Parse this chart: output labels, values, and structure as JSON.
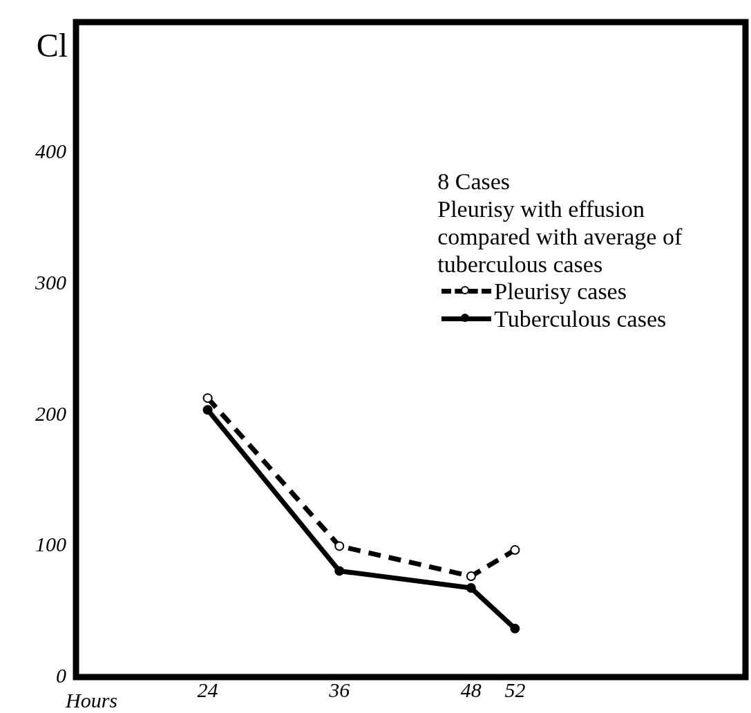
{
  "chart_data": {
    "type": "line",
    "title": "8 Cases",
    "subtitle": "Pleurisy with effusion compared with average of tuberculous cases",
    "xlabel": "Hours",
    "ylabel": "Cl",
    "x": [
      24,
      36,
      48,
      52
    ],
    "series": [
      {
        "name": "Pleurisy cases",
        "color": "#000000",
        "values": [
          213,
          100,
          77,
          97
        ],
        "line_style": "dashed",
        "marker": "circle"
      },
      {
        "name": "Tuberculous cases",
        "color": "#000000",
        "values": [
          204,
          81,
          68,
          37
        ],
        "line_style": "solid",
        "marker": "circle"
      }
    ],
    "xlim": [
      12,
      73
    ],
    "xticks": [
      24,
      36,
      48,
      52
    ],
    "ylim": [
      0,
      500
    ],
    "yticks": [
      0,
      100,
      200,
      300,
      400
    ],
    "grid": false,
    "legend": "top right"
  }
}
